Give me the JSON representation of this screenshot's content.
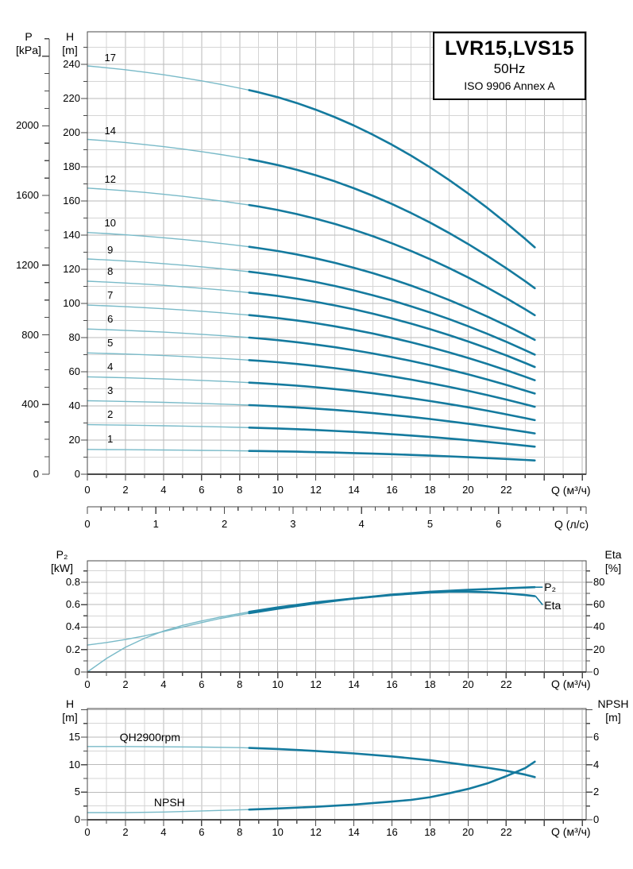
{
  "title_box": {
    "model": "LVR15,LVS15",
    "frequency": "50Hz",
    "standard": "ISO 9906 Annex A"
  },
  "headers": {
    "main_p": "P",
    "main_p_unit": "[kPa]",
    "main_h": "H",
    "main_h_unit": "[m]",
    "main_x_unit": "Q (м³/ч)",
    "main_x2_unit": "Q (л/с)",
    "mid_left": "P₂",
    "mid_left_unit": "[kW]",
    "mid_right": "Eta",
    "mid_right_unit": "[%]",
    "mid_x_unit": "Q (м³/ч)",
    "bot_left": "H",
    "bot_left_unit": "[m]",
    "bot_right": "NPSH",
    "bot_right_unit": "[m]",
    "bot_x_unit": "Q (м³/ч)"
  },
  "colors": {
    "curve_thin": "#79bac8",
    "curve_thick": "#147a9e",
    "grid_minor": "#d5d5d5",
    "grid_major": "#bababa",
    "axis": "#4a4a4a"
  },
  "chart_data": [
    {
      "type": "line",
      "name": "qh-curves",
      "x": {
        "unit": "Q (м³/ч)",
        "min": 0,
        "max": 26.2,
        "grid_step": 1,
        "tick_step": 1,
        "label_step": 2,
        "label_max": 22
      },
      "x2": {
        "unit": "Q (л/с)",
        "min": 0,
        "max": 7.28,
        "tick_step": 0.2,
        "label_step": 1,
        "label_max": 6
      },
      "y": {
        "unit": "H [m]",
        "min": 0,
        "max": 259,
        "grid_step": 10,
        "label_step": 20,
        "label_max": 240
      },
      "y2": {
        "unit": "P [kPa]",
        "min": 0,
        "max": 2500,
        "tick_step": 100,
        "label_step": 400,
        "label_max": 2000
      },
      "thin_to_q": 8.5,
      "curve_end_q": 23.5,
      "shape": {
        "q": [
          0,
          1,
          2,
          3,
          4,
          5,
          6,
          7,
          8,
          8.5,
          9,
          10,
          11,
          12,
          13,
          14,
          15,
          16,
          17,
          18,
          19,
          20,
          21,
          22,
          23,
          23.5
        ],
        "ratio": [
          1,
          0.9956,
          0.9906,
          0.9849,
          0.9784,
          0.9713,
          0.9634,
          0.9549,
          0.9456,
          0.9407,
          0.9354,
          0.9234,
          0.9092,
          0.8929,
          0.8746,
          0.8541,
          0.8316,
          0.807,
          0.7803,
          0.7515,
          0.7206,
          0.6876,
          0.6525,
          0.6154,
          0.5762,
          0.5557
        ]
      },
      "stages": [
        {
          "label": "17",
          "h0": 239
        },
        {
          "label": "14",
          "h0": 196
        },
        {
          "label": "12",
          "h0": 167.5
        },
        {
          "label": "10",
          "h0": 141.5
        },
        {
          "label": "9",
          "h0": 126
        },
        {
          "label": "8",
          "h0": 113
        },
        {
          "label": "7",
          "h0": 99
        },
        {
          "label": "6",
          "h0": 85
        },
        {
          "label": "5",
          "h0": 71
        },
        {
          "label": "4",
          "h0": 57
        },
        {
          "label": "3",
          "h0": 43
        },
        {
          "label": "2",
          "h0": 29
        },
        {
          "label": "1",
          "h0": 14.5
        }
      ]
    },
    {
      "type": "line",
      "name": "power-efficiency",
      "x": {
        "unit": "Q (м³/ч)",
        "min": 0,
        "max": 26.2,
        "grid_step": 1,
        "tick_step": 1,
        "label_step": 2,
        "label_max": 22
      },
      "y_left": {
        "unit": "P₂ [kW]",
        "min": 0,
        "max": 0.99,
        "grid_step": 0.1,
        "label_step": 0.2,
        "label_max": 0.8
      },
      "y_right": {
        "unit": "Eta [%]",
        "min": 0,
        "max": 99,
        "tick_step": 10,
        "label_step": 20,
        "label_max": 80
      },
      "thin_to_q": 8.5,
      "series": [
        {
          "name": "P₂",
          "axis": "left",
          "label_pos": {
            "mode": "end",
            "dx": 12,
            "dy": 0
          },
          "points": [
            [
              0,
              0.24
            ],
            [
              1,
              0.262
            ],
            [
              2,
              0.289
            ],
            [
              3,
              0.322
            ],
            [
              4,
              0.36
            ],
            [
              5,
              0.4
            ],
            [
              6,
              0.44
            ],
            [
              7,
              0.477
            ],
            [
              8,
              0.508
            ],
            [
              8.5,
              0.523
            ],
            [
              10,
              0.563
            ],
            [
              12,
              0.612
            ],
            [
              14,
              0.654
            ],
            [
              16,
              0.689
            ],
            [
              18,
              0.715
            ],
            [
              20,
              0.731
            ],
            [
              22,
              0.745
            ],
            [
              23.5,
              0.755
            ]
          ]
        },
        {
          "name": "Eta",
          "axis": "right",
          "label_pos": {
            "mode": "end",
            "dx": 12,
            "dy": 11
          },
          "points": [
            [
              0,
              0
            ],
            [
              1,
              12
            ],
            [
              2,
              22
            ],
            [
              3,
              30
            ],
            [
              4,
              36.5
            ],
            [
              5,
              41.5
            ],
            [
              6,
              45.5
            ],
            [
              7,
              49
            ],
            [
              8,
              52
            ],
            [
              8.5,
              53.5
            ],
            [
              10,
              57.5
            ],
            [
              12,
              62
            ],
            [
              14,
              65.5
            ],
            [
              16,
              68.5
            ],
            [
              18,
              70.8
            ],
            [
              19,
              71.5
            ],
            [
              20,
              71.5
            ],
            [
              21,
              71
            ],
            [
              22,
              70
            ],
            [
              23,
              68.5
            ],
            [
              23.5,
              67.5
            ]
          ]
        }
      ]
    },
    {
      "type": "line",
      "name": "qh2900-npsh",
      "x": {
        "unit": "Q (м³/ч)",
        "min": 0,
        "max": 26.2,
        "grid_step": 1,
        "tick_step": 1,
        "label_step": 2,
        "label_max": 22
      },
      "y_left": {
        "unit": "H [m]",
        "min": 0,
        "max": 20.2,
        "grid_step": 2.5,
        "label_step": 5,
        "label_max": 15
      },
      "y_right": {
        "unit": "NPSH [m]",
        "min": 0,
        "max": 8.08,
        "tick_step": 1,
        "label_step": 2,
        "label_max": 6
      },
      "thin_to_q": 8.5,
      "series": [
        {
          "name": "QH2900rpm",
          "axis": "left",
          "label_pos": {
            "mode": "q",
            "q": 1.7,
            "dy": -12
          },
          "points": [
            [
              0,
              13.3
            ],
            [
              2,
              13.3
            ],
            [
              4,
              13.25
            ],
            [
              6,
              13.2
            ],
            [
              8,
              13.1
            ],
            [
              8.5,
              13.05
            ],
            [
              10,
              12.85
            ],
            [
              12,
              12.5
            ],
            [
              14,
              12.05
            ],
            [
              16,
              11.5
            ],
            [
              18,
              10.8
            ],
            [
              20,
              9.9
            ],
            [
              21,
              9.45
            ],
            [
              22,
              8.9
            ],
            [
              23,
              8.2
            ],
            [
              23.5,
              7.75
            ]
          ]
        },
        {
          "name": "NPSH",
          "axis": "right",
          "label_pos": {
            "mode": "q",
            "q": 3.5,
            "dy": -12
          },
          "points": [
            [
              0,
              0.52
            ],
            [
              2,
              0.52
            ],
            [
              4,
              0.56
            ],
            [
              6,
              0.64
            ],
            [
              8,
              0.72
            ],
            [
              8.5,
              0.74
            ],
            [
              10,
              0.82
            ],
            [
              12,
              0.94
            ],
            [
              14,
              1.1
            ],
            [
              16,
              1.32
            ],
            [
              17,
              1.44
            ],
            [
              18,
              1.64
            ],
            [
              19,
              1.92
            ],
            [
              20,
              2.24
            ],
            [
              21,
              2.64
            ],
            [
              22,
              3.16
            ],
            [
              23,
              3.76
            ],
            [
              23.5,
              4.22
            ]
          ]
        }
      ]
    }
  ]
}
